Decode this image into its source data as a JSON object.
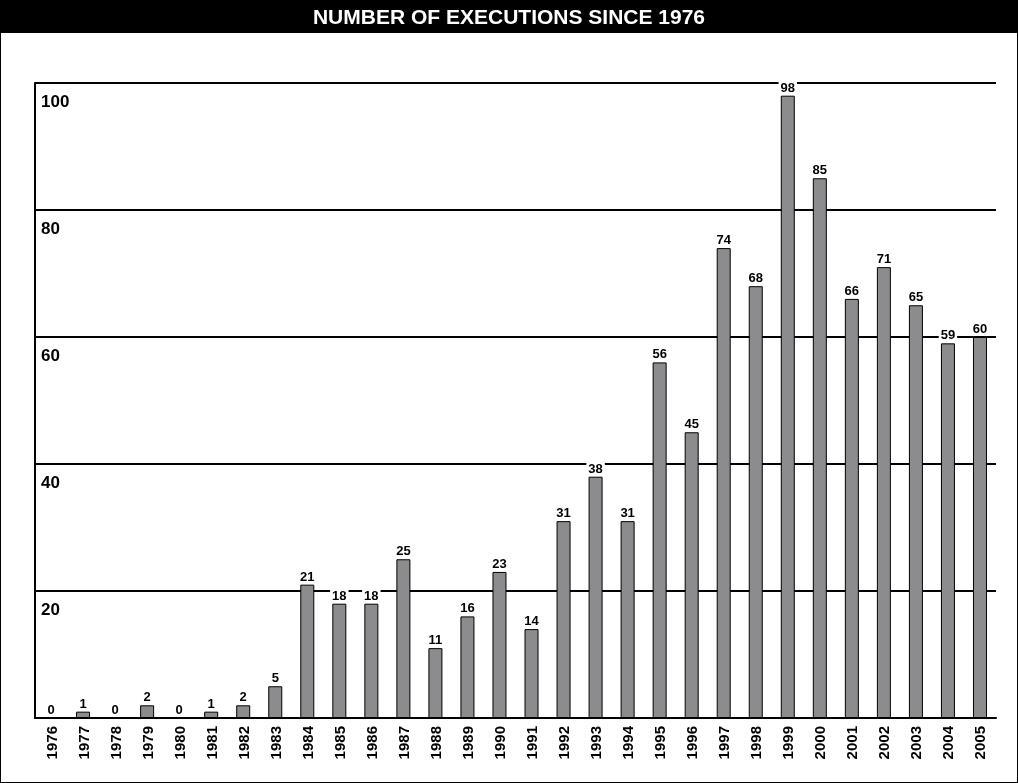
{
  "chart_data": {
    "type": "bar",
    "title": "NUMBER OF EXECUTIONS SINCE 1976",
    "categories": [
      "1976",
      "1977",
      "1978",
      "1979",
      "1980",
      "1981",
      "1982",
      "1983",
      "1984",
      "1985",
      "1986",
      "1987",
      "1988",
      "1989",
      "1990",
      "1991",
      "1992",
      "1993",
      "1994",
      "1995",
      "1996",
      "1997",
      "1998",
      "1999",
      "2000",
      "2001",
      "2002",
      "2003",
      "2004",
      "2005"
    ],
    "values": [
      0,
      1,
      0,
      2,
      0,
      1,
      2,
      5,
      21,
      18,
      18,
      25,
      11,
      16,
      23,
      14,
      31,
      38,
      31,
      56,
      45,
      74,
      68,
      98,
      85,
      66,
      71,
      65,
      59,
      60
    ],
    "color": "#8c8c8e",
    "ylim": [
      0,
      100
    ],
    "yticks": [
      20,
      40,
      60,
      80,
      100
    ],
    "grid": "y",
    "data_labels": true
  }
}
